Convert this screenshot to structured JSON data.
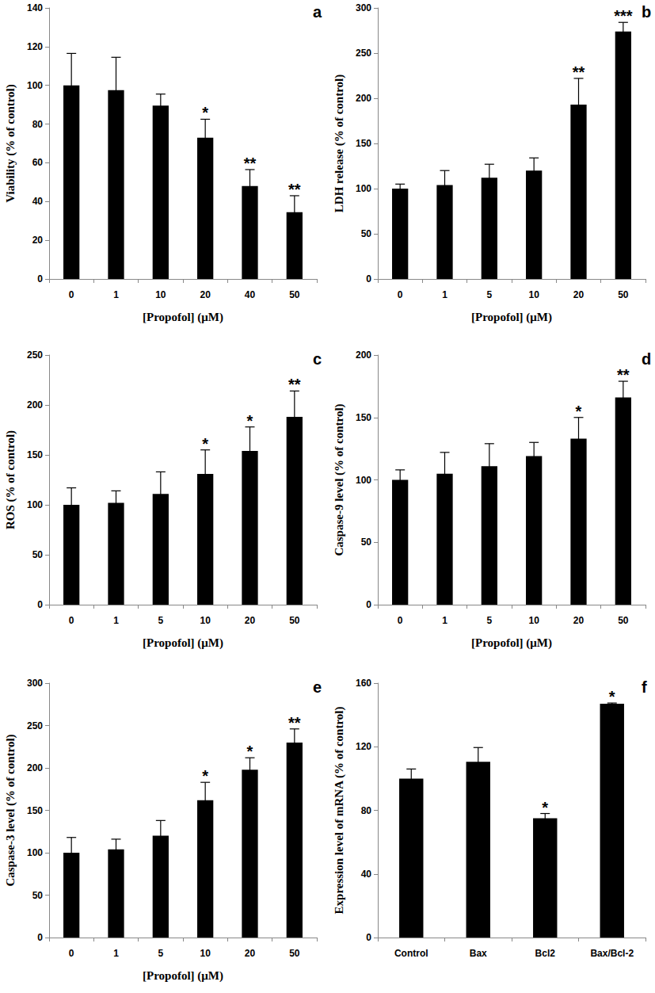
{
  "chart_data": [
    {
      "type": "bar",
      "title": "a",
      "x_label": "[Propofol] (μM)",
      "y_label": "Viability (% of control)",
      "categories": [
        "0",
        "1",
        "10",
        "20",
        "40",
        "50"
      ],
      "values": [
        100,
        97.5,
        89.5,
        73,
        48,
        34.5
      ],
      "errors": [
        16.5,
        17,
        6,
        9.5,
        8.5,
        8.5
      ],
      "annotations": [
        null,
        null,
        null,
        "*",
        "**",
        "**"
      ],
      "ylim": [
        0,
        140
      ],
      "yticks": [
        0,
        20,
        40,
        60,
        80,
        100,
        120,
        140
      ],
      "color": "#000000",
      "grid": false
    },
    {
      "type": "bar",
      "title": "b",
      "x_label": "[Propofol] (μM)",
      "y_label": "LDH release (% of control)",
      "categories": [
        "0",
        "1",
        "5",
        "10",
        "20",
        "50"
      ],
      "values": [
        100,
        104,
        112,
        120,
        193,
        274
      ],
      "errors": [
        5,
        16,
        15,
        14,
        29,
        10
      ],
      "annotations": [
        null,
        null,
        null,
        null,
        "**",
        "***"
      ],
      "ylim": [
        0,
        300
      ],
      "yticks": [
        0,
        50,
        100,
        150,
        200,
        250,
        300
      ],
      "color": "#000000",
      "grid": false
    },
    {
      "type": "bar",
      "title": "c",
      "x_label": "[Propofol] (μM)",
      "y_label": "ROS (% of control)",
      "categories": [
        "0",
        "1",
        "5",
        "10",
        "20",
        "50"
      ],
      "values": [
        100,
        102,
        111,
        131,
        154,
        188
      ],
      "errors": [
        17,
        12,
        22,
        24,
        24,
        26
      ],
      "annotations": [
        null,
        null,
        null,
        "*",
        "*",
        "**"
      ],
      "ylim": [
        0,
        250
      ],
      "yticks": [
        0,
        50,
        100,
        150,
        200,
        250
      ],
      "color": "#000000",
      "grid": false
    },
    {
      "type": "bar",
      "title": "d",
      "x_label": "[Propofol] (μM)",
      "y_label": "Caspase-9 level (% of control)",
      "categories": [
        "0",
        "1",
        "5",
        "10",
        "20",
        "50"
      ],
      "values": [
        100,
        105,
        111,
        119,
        133,
        166
      ],
      "errors": [
        8,
        17,
        18,
        11,
        17,
        13
      ],
      "annotations": [
        null,
        null,
        null,
        null,
        "*",
        "**"
      ],
      "ylim": [
        0,
        200
      ],
      "yticks": [
        0,
        50,
        100,
        150,
        200
      ],
      "color": "#000000",
      "grid": false
    },
    {
      "type": "bar",
      "title": "e",
      "x_label": "[Propofol] (μM)",
      "y_label": "Caspase-3 level (% of control)",
      "categories": [
        "0",
        "1",
        "5",
        "10",
        "20",
        "50"
      ],
      "values": [
        100,
        104,
        120,
        162,
        198,
        230
      ],
      "errors": [
        18,
        12,
        18,
        21,
        14,
        16
      ],
      "annotations": [
        null,
        null,
        null,
        "*",
        "*",
        "**"
      ],
      "ylim": [
        0,
        300
      ],
      "yticks": [
        0,
        50,
        100,
        150,
        200,
        250,
        300
      ],
      "color": "#000000",
      "grid": false
    },
    {
      "type": "bar",
      "title": "f",
      "y_label": "Expression level of mRNA (% of control)",
      "categories": [
        "Control",
        "Bax",
        "Bcl2",
        "Bax/Bcl-2"
      ],
      "values": [
        100,
        110.5,
        75,
        147
      ],
      "errors": [
        6,
        9,
        3,
        0.5
      ],
      "annotations": [
        null,
        null,
        "*",
        "*"
      ],
      "ylim": [
        0,
        160
      ],
      "yticks": [
        0,
        40,
        80,
        120,
        160
      ],
      "color": "#000000",
      "grid": false
    }
  ]
}
